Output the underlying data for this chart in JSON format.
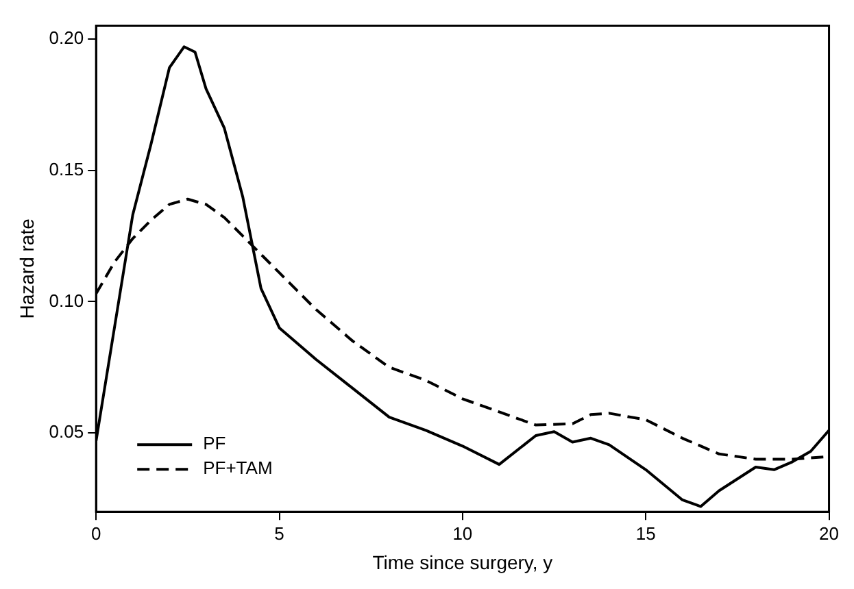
{
  "chart_data": {
    "type": "line",
    "xlabel": "Time since surgery, y",
    "ylabel": "Hazard rate",
    "xlim": [
      0,
      20
    ],
    "xticks": [
      0,
      5,
      10,
      15,
      20
    ],
    "ylim": [
      0.02,
      0.205
    ],
    "yticks": [
      0.05,
      {
        "value": 0.1,
        "label": "0.10"
      },
      0.15,
      {
        "value": 0.2,
        "label": "0.20"
      }
    ],
    "grid": false,
    "legend": "bottom left",
    "marker": "none",
    "series": [
      {
        "name": "PF",
        "color": "#000000",
        "line_style": "solid",
        "x": [
          0,
          1,
          1.5,
          2,
          2.4,
          2.7,
          3,
          3.5,
          4,
          4.5,
          5,
          6,
          7,
          8,
          9,
          10,
          11,
          12,
          12.5,
          13,
          13.5,
          14,
          15,
          16,
          16.5,
          17,
          18,
          18.5,
          19,
          19.5,
          20
        ],
        "values": [
          0.047,
          0.133,
          0.16,
          0.189,
          0.197,
          0.195,
          0.181,
          0.166,
          0.14,
          0.105,
          0.09,
          0.078,
          0.067,
          0.056,
          0.051,
          0.045,
          0.038,
          0.049,
          0.0505,
          0.0465,
          0.048,
          0.0455,
          0.036,
          0.0245,
          0.022,
          0.028,
          0.037,
          0.036,
          0.039,
          0.043,
          0.051
        ]
      },
      {
        "name": "PF+TAM",
        "color": "#000000",
        "line_style": "dashed",
        "x": [
          0,
          0.5,
          1,
          1.5,
          2,
          2.5,
          3,
          3.5,
          4,
          5,
          6,
          7,
          8,
          9,
          10,
          11,
          12,
          13,
          13.5,
          14,
          15,
          16,
          17,
          18,
          19,
          20
        ],
        "values": [
          0.103,
          0.115,
          0.124,
          0.131,
          0.137,
          0.139,
          0.137,
          0.132,
          0.125,
          0.111,
          0.097,
          0.085,
          0.075,
          0.07,
          0.063,
          0.058,
          0.053,
          0.0535,
          0.057,
          0.0575,
          0.055,
          0.048,
          0.042,
          0.04,
          0.04,
          0.041
        ]
      }
    ]
  }
}
